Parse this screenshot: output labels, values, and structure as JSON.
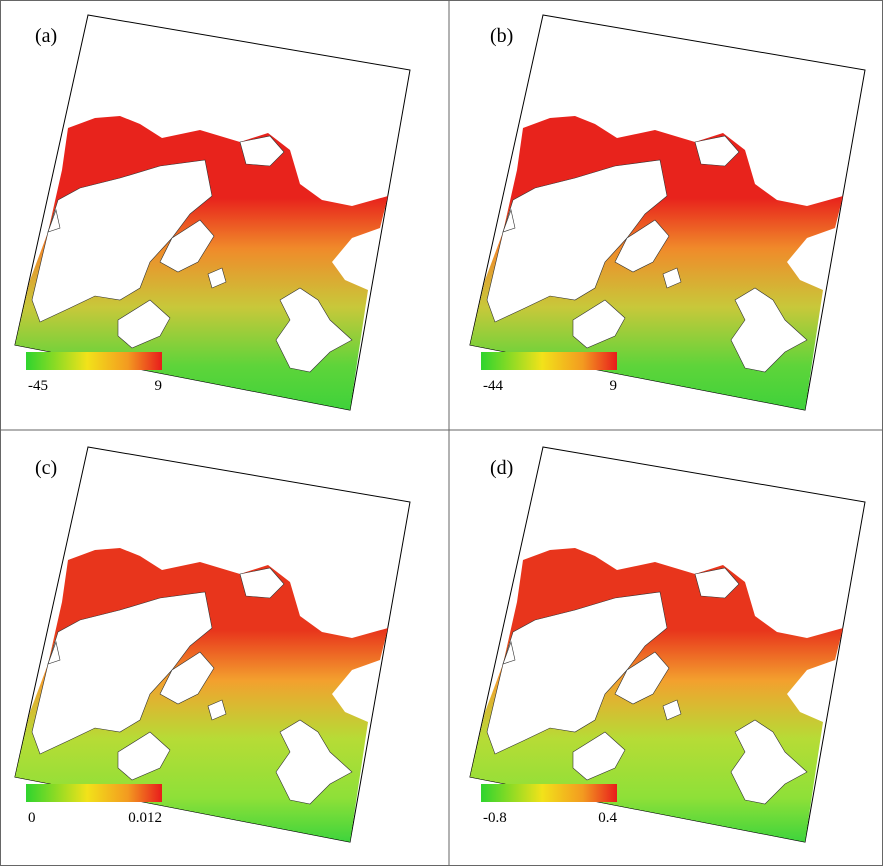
{
  "panels": [
    {
      "label": "(a)",
      "colorbar": {
        "min": "-45",
        "max": "9"
      }
    },
    {
      "label": "(b)",
      "colorbar": {
        "min": "-44",
        "max": "9"
      }
    },
    {
      "label": "(c)",
      "colorbar": {
        "min": "0",
        "max": "0.012"
      }
    },
    {
      "label": "(d)",
      "colorbar": {
        "min": "-0.8",
        "max": "0.4"
      }
    }
  ]
}
